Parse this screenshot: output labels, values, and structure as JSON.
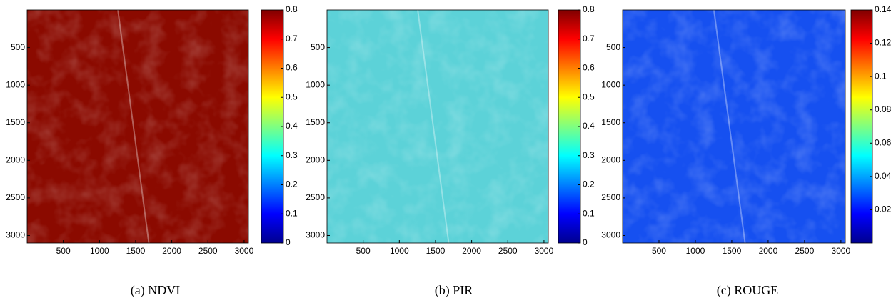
{
  "chart_data": [
    {
      "type": "heatmap",
      "caption": "(a) NDVI",
      "color": "#8b0a00",
      "colormap": "jet",
      "xlim": [
        0,
        3060
      ],
      "xticks": [
        500,
        1000,
        1500,
        2000,
        2500,
        3000
      ],
      "ylim": [
        3100,
        0
      ],
      "yticks": [
        500,
        1000,
        1500,
        2000,
        2500,
        3000
      ],
      "clim": [
        0,
        0.8
      ],
      "cticks": [
        0,
        0.1,
        0.2,
        0.3,
        0.4,
        0.5,
        0.6,
        0.7,
        0.8
      ]
    },
    {
      "type": "heatmap",
      "caption": "(b) PIR",
      "color": "#5cd2d8",
      "colormap": "jet",
      "xlim": [
        0,
        3060
      ],
      "xticks": [
        500,
        1000,
        1500,
        2000,
        2500,
        3000
      ],
      "ylim": [
        3100,
        0
      ],
      "yticks": [
        500,
        1000,
        1500,
        2000,
        2500,
        3000
      ],
      "clim": [
        0,
        0.8
      ],
      "cticks": [
        0,
        0.1,
        0.2,
        0.3,
        0.4,
        0.5,
        0.6,
        0.7,
        0.8
      ]
    },
    {
      "type": "heatmap",
      "caption": "(c) ROUGE",
      "color": "#1650f0",
      "colormap": "jet",
      "xlim": [
        0,
        3060
      ],
      "xticks": [
        500,
        1000,
        1500,
        2000,
        2500,
        3000
      ],
      "ylim": [
        3100,
        0
      ],
      "yticks": [
        500,
        1000,
        1500,
        2000,
        2500,
        3000
      ],
      "clim": [
        0,
        0.14
      ],
      "cticks": [
        0.02,
        0.04,
        0.06,
        0.08,
        0.1,
        0.12,
        0.14
      ]
    }
  ]
}
